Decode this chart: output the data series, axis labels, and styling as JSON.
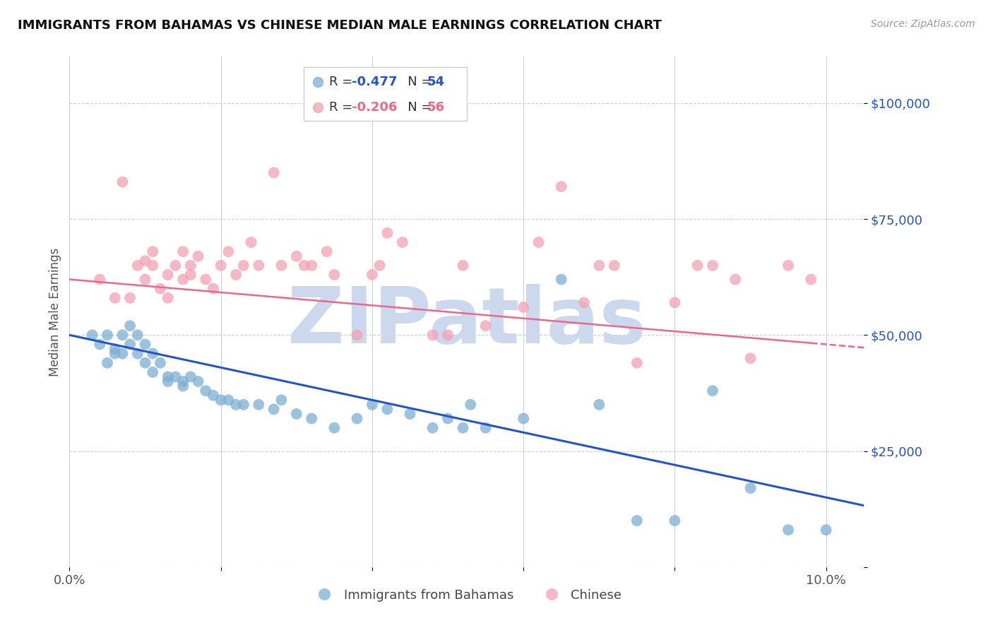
{
  "title": "IMMIGRANTS FROM BAHAMAS VS CHINESE MEDIAN MALE EARNINGS CORRELATION CHART",
  "source": "Source: ZipAtlas.com",
  "ylabel": "Median Male Earnings",
  "xlim": [
    0.0,
    0.105
  ],
  "ylim": [
    0,
    110000
  ],
  "yticks": [
    0,
    25000,
    50000,
    75000,
    100000
  ],
  "xticks": [
    0.0,
    0.02,
    0.04,
    0.06,
    0.08,
    0.1
  ],
  "background_color": "#ffffff",
  "grid_color": "#d0d0d0",
  "blue_color": "#7bafd4",
  "pink_color": "#f4a0b0",
  "trend_blue": "#2255cc",
  "trend_pink": "#ee6688",
  "watermark_color": "#ccd8ee",
  "legend_R_blue": "-0.477",
  "legend_N_blue": "54",
  "legend_R_pink": "-0.206",
  "legend_N_pink": "56",
  "legend_label_blue": "Immigrants from Bahamas",
  "legend_label_pink": "Chinese",
  "blue_x": [
    0.003,
    0.004,
    0.005,
    0.005,
    0.006,
    0.006,
    0.007,
    0.007,
    0.008,
    0.008,
    0.009,
    0.009,
    0.01,
    0.01,
    0.011,
    0.011,
    0.012,
    0.013,
    0.013,
    0.014,
    0.015,
    0.015,
    0.016,
    0.017,
    0.018,
    0.019,
    0.02,
    0.021,
    0.022,
    0.023,
    0.025,
    0.027,
    0.028,
    0.03,
    0.032,
    0.035,
    0.038,
    0.04,
    0.042,
    0.045,
    0.048,
    0.05,
    0.052,
    0.053,
    0.055,
    0.06,
    0.065,
    0.07,
    0.075,
    0.08,
    0.085,
    0.09,
    0.095,
    0.1
  ],
  "blue_y": [
    50000,
    48000,
    50000,
    44000,
    47000,
    46000,
    50000,
    46000,
    52000,
    48000,
    50000,
    46000,
    48000,
    44000,
    46000,
    42000,
    44000,
    41000,
    40000,
    41000,
    40000,
    39000,
    41000,
    40000,
    38000,
    37000,
    36000,
    36000,
    35000,
    35000,
    35000,
    34000,
    36000,
    33000,
    32000,
    30000,
    32000,
    35000,
    34000,
    33000,
    30000,
    32000,
    30000,
    35000,
    30000,
    32000,
    62000,
    35000,
    10000,
    10000,
    38000,
    17000,
    8000,
    8000
  ],
  "pink_x": [
    0.004,
    0.006,
    0.007,
    0.008,
    0.009,
    0.01,
    0.01,
    0.011,
    0.011,
    0.012,
    0.013,
    0.013,
    0.014,
    0.015,
    0.015,
    0.016,
    0.016,
    0.017,
    0.018,
    0.019,
    0.02,
    0.021,
    0.022,
    0.023,
    0.024,
    0.025,
    0.027,
    0.028,
    0.03,
    0.031,
    0.032,
    0.034,
    0.035,
    0.038,
    0.04,
    0.041,
    0.042,
    0.044,
    0.048,
    0.05,
    0.052,
    0.055,
    0.06,
    0.062,
    0.065,
    0.068,
    0.07,
    0.072,
    0.075,
    0.08,
    0.083,
    0.085,
    0.088,
    0.09,
    0.095,
    0.098
  ],
  "pink_y": [
    62000,
    58000,
    83000,
    58000,
    65000,
    62000,
    66000,
    65000,
    68000,
    60000,
    58000,
    63000,
    65000,
    62000,
    68000,
    65000,
    63000,
    67000,
    62000,
    60000,
    65000,
    68000,
    63000,
    65000,
    70000,
    65000,
    85000,
    65000,
    67000,
    65000,
    65000,
    68000,
    63000,
    50000,
    63000,
    65000,
    72000,
    70000,
    50000,
    50000,
    65000,
    52000,
    56000,
    70000,
    82000,
    57000,
    65000,
    65000,
    44000,
    57000,
    65000,
    65000,
    62000,
    45000,
    65000,
    62000
  ]
}
